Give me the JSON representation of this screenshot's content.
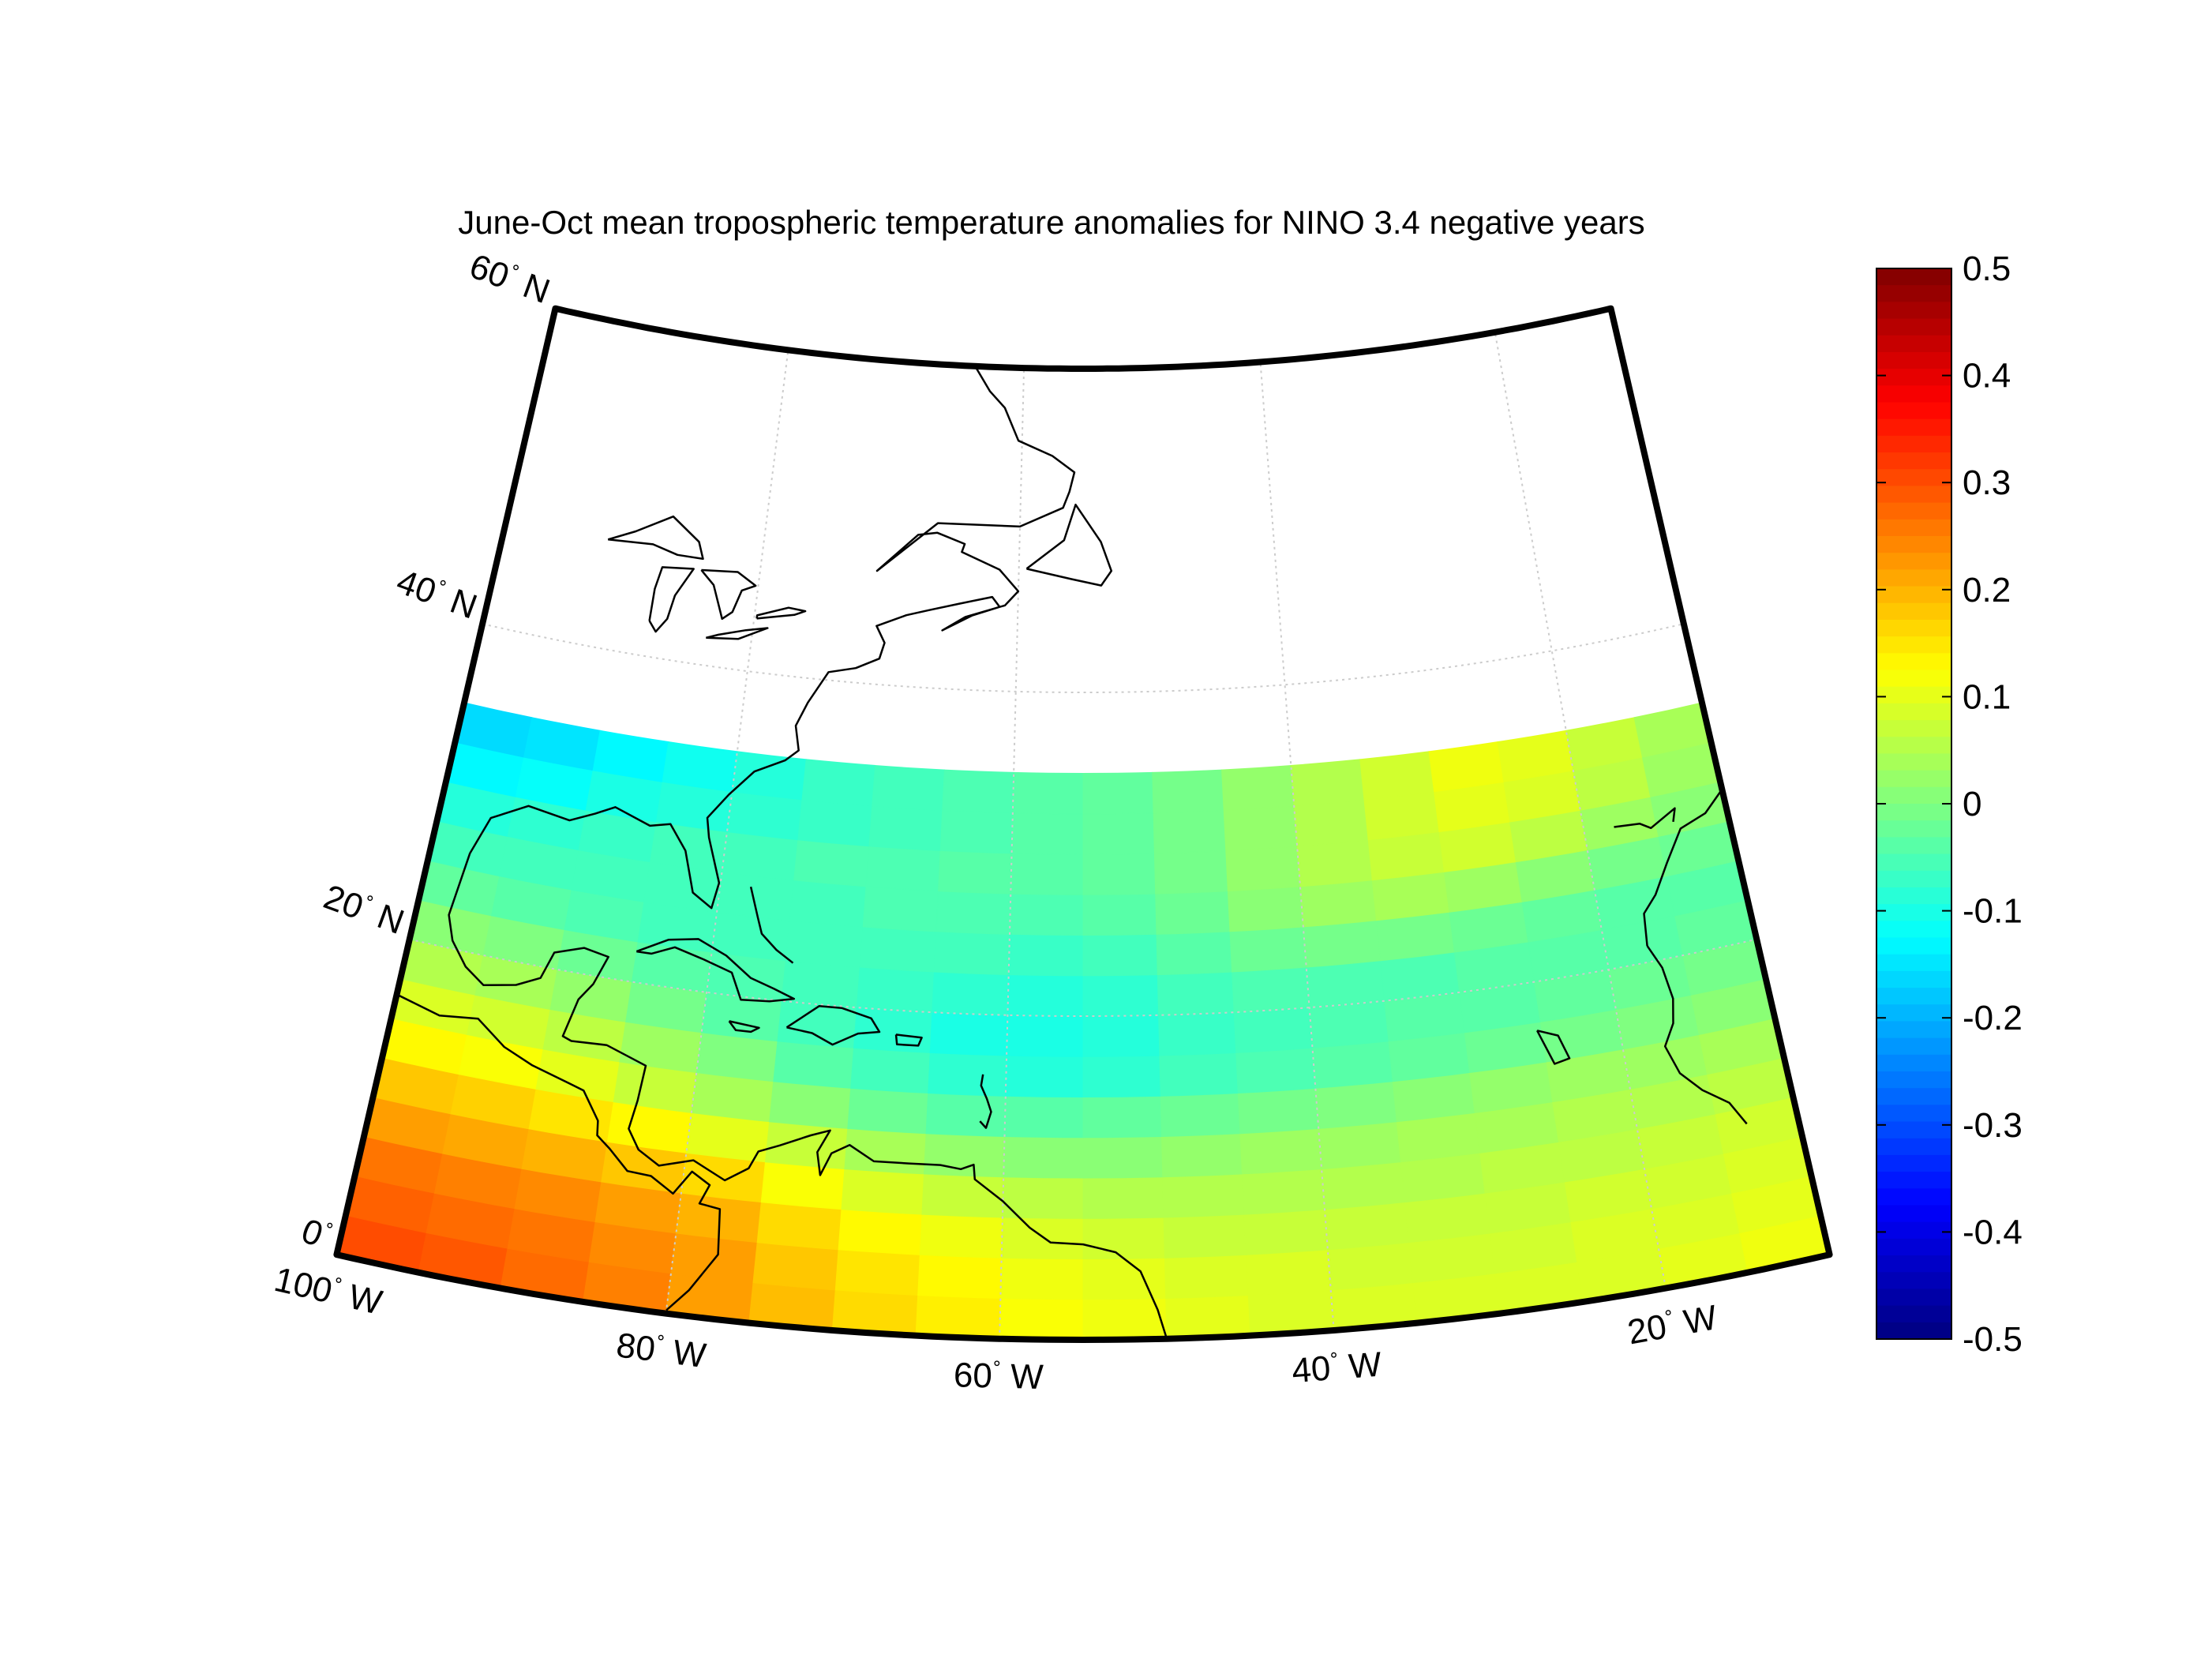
{
  "title": "June-Oct mean tropospheric temperature anomalies for NINO 3.4 negative years",
  "map": {
    "projection": "conic",
    "lon_range": [
      -100,
      -10
    ],
    "lat_range": [
      0,
      60
    ],
    "data_lat_range": [
      0,
      35
    ],
    "grid_step_deg": 20,
    "lat_labels": [
      {
        "lat": 0,
        "num": "0",
        "hemi": ""
      },
      {
        "lat": 20,
        "num": "20",
        "hemi": "N"
      },
      {
        "lat": 40,
        "num": "40",
        "hemi": "N"
      },
      {
        "lat": 60,
        "num": "60",
        "hemi": "N"
      }
    ],
    "lon_labels": [
      {
        "lon": -100,
        "num": "100",
        "hemi": "W"
      },
      {
        "lon": -80,
        "num": "80",
        "hemi": "W"
      },
      {
        "lon": -60,
        "num": "60",
        "hemi": "W"
      },
      {
        "lon": -40,
        "num": "40",
        "hemi": "W"
      },
      {
        "lon": -20,
        "num": "20",
        "hemi": "W"
      }
    ],
    "coast_color": "#000000",
    "grid_color": "#cccccc"
  },
  "colorbar": {
    "min": -0.5,
    "max": 0.5,
    "colormap": "jet",
    "ticks": [
      "0.5",
      "0.4",
      "0.3",
      "0.2",
      "0.1",
      "0",
      "-0.1",
      "-0.2",
      "-0.3",
      "-0.4",
      "-0.5"
    ]
  },
  "chart_data": {
    "type": "heatmap",
    "title": "June-Oct mean tropospheric temperature anomalies for NINO 3.4 negative years",
    "description_units": "temperature anomaly",
    "grid": {
      "lon_start": -100,
      "lon_step": 5,
      "lat_start": 0,
      "lat_step": 2.5
    },
    "lons": [
      -100,
      -95,
      -90,
      -85,
      -80,
      -75,
      -70,
      -65,
      -60,
      -55,
      -50,
      -45,
      -40,
      -35,
      -30,
      -25,
      -20,
      -15
    ],
    "lats": [
      0,
      2.5,
      5,
      7.5,
      10,
      12.5,
      15,
      17.5,
      20,
      22.5,
      25,
      27.5,
      30,
      32.5
    ],
    "values": [
      [
        0.3,
        0.29,
        0.27,
        0.25,
        0.22,
        0.19,
        0.16,
        0.14,
        0.12,
        0.11,
        0.1,
        0.09,
        0.09,
        0.09,
        0.09,
        0.09,
        0.1,
        0.11
      ],
      [
        0.28,
        0.27,
        0.26,
        0.24,
        0.22,
        0.18,
        0.15,
        0.13,
        0.11,
        0.1,
        0.09,
        0.09,
        0.08,
        0.08,
        0.08,
        0.09,
        0.09,
        0.1
      ],
      [
        0.26,
        0.25,
        0.24,
        0.22,
        0.2,
        0.16,
        0.13,
        0.11,
        0.09,
        0.08,
        0.07,
        0.07,
        0.07,
        0.07,
        0.07,
        0.08,
        0.08,
        0.09
      ],
      [
        0.22,
        0.21,
        0.2,
        0.18,
        0.16,
        0.12,
        0.09,
        0.07,
        0.06,
        0.05,
        0.05,
        0.05,
        0.05,
        0.05,
        0.06,
        0.06,
        0.07,
        0.08
      ],
      [
        0.18,
        0.17,
        0.15,
        0.13,
        0.1,
        0.07,
        0.04,
        0.02,
        0.01,
        0.01,
        0.02,
        0.03,
        0.03,
        0.04,
        0.04,
        0.05,
        0.05,
        0.06
      ],
      [
        0.13,
        0.12,
        0.1,
        0.07,
        0.04,
        0.01,
        -0.02,
        -0.04,
        -0.04,
        -0.03,
        -0.02,
        -0.01,
        0.0,
        0.01,
        0.02,
        0.03,
        0.03,
        0.04
      ],
      [
        0.09,
        0.08,
        0.06,
        0.03,
        0.0,
        -0.04,
        -0.06,
        -0.08,
        -0.09,
        -0.08,
        -0.06,
        -0.05,
        -0.04,
        -0.03,
        -0.02,
        -0.01,
        0.0,
        0.01
      ],
      [
        0.05,
        0.04,
        0.02,
        -0.01,
        -0.04,
        -0.06,
        -0.08,
        -0.1,
        -0.1,
        -0.09,
        -0.07,
        -0.06,
        -0.05,
        -0.04,
        -0.04,
        -0.03,
        -0.02,
        -0.01
      ],
      [
        0.01,
        0.0,
        -0.02,
        -0.04,
        -0.05,
        -0.06,
        -0.07,
        -0.08,
        -0.09,
        -0.08,
        -0.06,
        -0.05,
        -0.05,
        -0.05,
        -0.04,
        -0.04,
        -0.04,
        -0.03
      ],
      [
        -0.03,
        -0.04,
        -0.05,
        -0.06,
        -0.06,
        -0.06,
        -0.06,
        -0.06,
        -0.07,
        -0.06,
        -0.04,
        -0.02,
        -0.01,
        -0.01,
        -0.02,
        -0.03,
        -0.04,
        -0.04
      ],
      [
        -0.06,
        -0.06,
        -0.06,
        -0.06,
        -0.06,
        -0.06,
        -0.05,
        -0.05,
        -0.05,
        -0.04,
        -0.02,
        0.01,
        0.03,
        0.04,
        0.03,
        0.01,
        -0.01,
        -0.02
      ],
      [
        -0.09,
        -0.08,
        -0.07,
        -0.06,
        -0.06,
        -0.05,
        -0.05,
        -0.04,
        -0.04,
        -0.03,
        -0.01,
        0.02,
        0.05,
        0.07,
        0.08,
        0.06,
        0.03,
        0.01
      ],
      [
        -0.13,
        -0.12,
        -0.1,
        -0.09,
        -0.08,
        -0.07,
        -0.06,
        -0.05,
        -0.04,
        -0.03,
        -0.01,
        0.02,
        0.05,
        0.08,
        0.1,
        0.09,
        0.06,
        0.03
      ],
      [
        -0.16,
        -0.15,
        -0.13,
        -0.11,
        -0.09,
        -0.07,
        -0.06,
        -0.05,
        -0.04,
        -0.03,
        -0.01,
        0.02,
        0.05,
        0.08,
        0.11,
        0.1,
        0.07,
        0.04
      ]
    ]
  }
}
